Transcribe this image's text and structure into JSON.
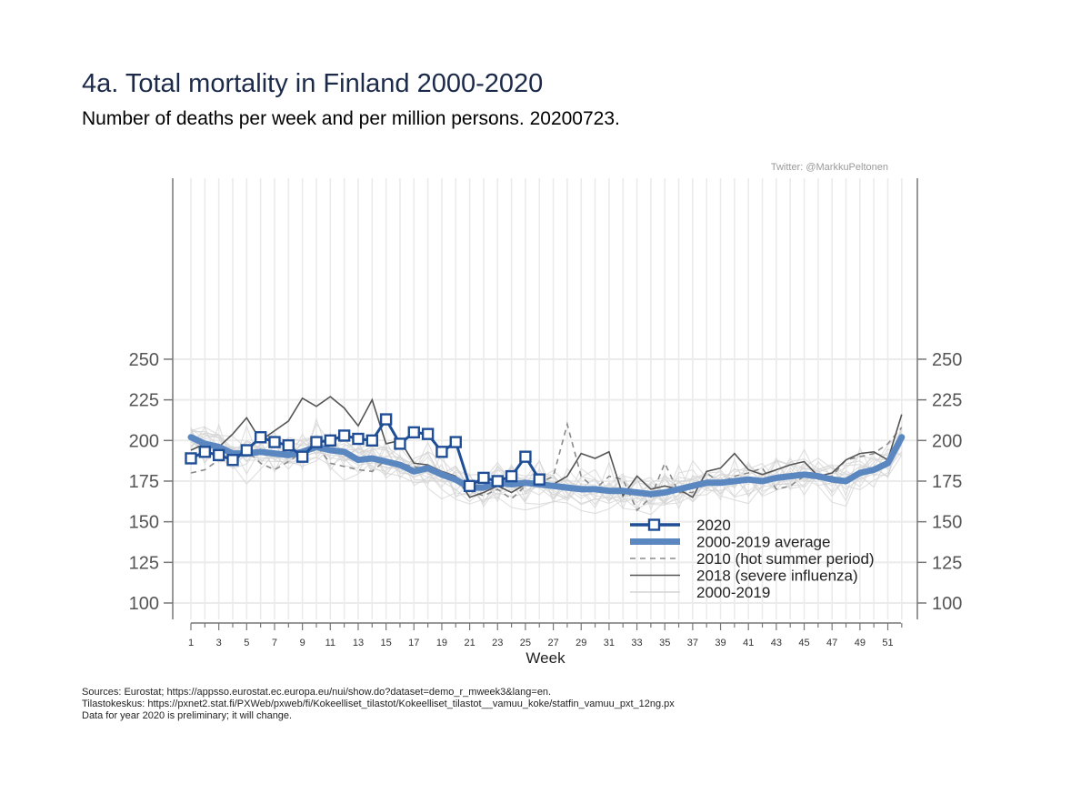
{
  "title": "4a. Total mortality in Finland 2000-2020",
  "subtitle": "Number of deaths per week and per million persons. 20200723.",
  "credit": "Twitter: @MarkkuPeltonen",
  "sources": [
    "Sources: Eurostat; https://appsso.eurostat.ec.europa.eu/nui/show.do?dataset=demo_r_mweek3&lang=en.",
    "Tilastokeskus: https://pxnet2.stat.fi/PXWeb/pxweb/fi/Kokeelliset_tilastot/Kokeelliset_tilastot__vamuu_koke/statfin_vamuu_pxt_12ng.px",
    "Data for year 2020 is preliminary; it will change."
  ],
  "chart_data": {
    "type": "line",
    "xlabel": "Week",
    "ylabel": "",
    "xlim": [
      1,
      52
    ],
    "ylim": [
      100,
      250
    ],
    "x_ticks": [
      1,
      3,
      5,
      7,
      9,
      11,
      13,
      15,
      17,
      19,
      21,
      23,
      25,
      27,
      29,
      31,
      33,
      35,
      37,
      39,
      41,
      43,
      45,
      47,
      49,
      51
    ],
    "y_ticks": [
      100,
      125,
      150,
      175,
      200,
      225,
      250
    ],
    "grid": true,
    "legend_position": "bottom-right",
    "colors": {
      "y2020": "#1f4e96",
      "average": "#5b87c0",
      "y2010": "#8a8a8a",
      "y2018": "#555555",
      "background_years": "#d4d4d4"
    },
    "series": [
      {
        "name": "2020",
        "style": "line-square-markers",
        "x": [
          1,
          2,
          3,
          4,
          5,
          6,
          7,
          8,
          9,
          10,
          11,
          12,
          13,
          14,
          15,
          16,
          17,
          18,
          19,
          20,
          21,
          22,
          23,
          24,
          25,
          26
        ],
        "values": [
          189,
          193,
          191,
          188,
          194,
          202,
          199,
          197,
          190,
          199,
          200,
          203,
          201,
          200,
          213,
          198,
          205,
          204,
          193,
          199,
          172,
          177,
          175,
          178,
          190,
          176
        ]
      },
      {
        "name": "2000-2019 average",
        "style": "thick-line",
        "x": [
          1,
          2,
          3,
          4,
          5,
          6,
          7,
          8,
          9,
          10,
          11,
          12,
          13,
          14,
          15,
          16,
          17,
          18,
          19,
          20,
          21,
          22,
          23,
          24,
          25,
          26,
          27,
          28,
          29,
          30,
          31,
          32,
          33,
          34,
          35,
          36,
          37,
          38,
          39,
          40,
          41,
          42,
          43,
          44,
          45,
          46,
          47,
          48,
          49,
          50,
          51,
          52
        ],
        "values": [
          202,
          198,
          196,
          192,
          192,
          193,
          192,
          191,
          193,
          196,
          194,
          193,
          188,
          189,
          187,
          185,
          181,
          183,
          179,
          176,
          171,
          171,
          174,
          173,
          174,
          173,
          172,
          171,
          170,
          170,
          169,
          169,
          168,
          167,
          168,
          170,
          172,
          174,
          174,
          175,
          176,
          175,
          177,
          178,
          179,
          178,
          176,
          175,
          180,
          182,
          186,
          202
        ]
      },
      {
        "name": "2010 (hot summer period)",
        "style": "dashed",
        "x": [
          1,
          2,
          3,
          4,
          5,
          6,
          7,
          8,
          9,
          10,
          11,
          12,
          13,
          14,
          15,
          16,
          17,
          18,
          19,
          20,
          21,
          22,
          23,
          24,
          25,
          26,
          27,
          28,
          29,
          30,
          31,
          32,
          33,
          34,
          35,
          36,
          37,
          38,
          39,
          40,
          41,
          42,
          43,
          44,
          45,
          46,
          47,
          48,
          49,
          50,
          51,
          52
        ],
        "values": [
          180,
          182,
          188,
          186,
          194,
          186,
          182,
          187,
          193,
          197,
          186,
          184,
          182,
          181,
          188,
          186,
          184,
          182,
          180,
          176,
          169,
          166,
          170,
          164,
          172,
          174,
          178,
          210,
          178,
          170,
          178,
          176,
          157,
          165,
          186,
          168,
          168,
          180,
          174,
          178,
          180,
          183,
          170,
          172,
          178,
          176,
          178,
          188,
          190,
          192,
          198,
          208
        ]
      },
      {
        "name": "2018 (severe influenza)",
        "style": "thin-dark",
        "x": [
          1,
          2,
          3,
          4,
          5,
          6,
          7,
          8,
          9,
          10,
          11,
          12,
          13,
          14,
          15,
          16,
          17,
          18,
          19,
          20,
          21,
          22,
          23,
          24,
          25,
          26,
          27,
          28,
          29,
          30,
          31,
          32,
          33,
          34,
          35,
          36,
          37,
          38,
          39,
          40,
          41,
          42,
          43,
          44,
          45,
          46,
          47,
          48,
          49,
          50,
          51,
          52
        ],
        "values": [
          194,
          198,
          196,
          204,
          214,
          200,
          206,
          212,
          226,
          221,
          227,
          220,
          209,
          225,
          198,
          200,
          186,
          185,
          181,
          178,
          165,
          168,
          172,
          168,
          173,
          172,
          173,
          178,
          192,
          189,
          193,
          166,
          178,
          170,
          172,
          170,
          165,
          181,
          183,
          192,
          182,
          179,
          182,
          185,
          187,
          178,
          180,
          188,
          192,
          193,
          188,
          216
        ]
      },
      {
        "name": "2000-2019",
        "style": "thin-light"
      }
    ]
  }
}
